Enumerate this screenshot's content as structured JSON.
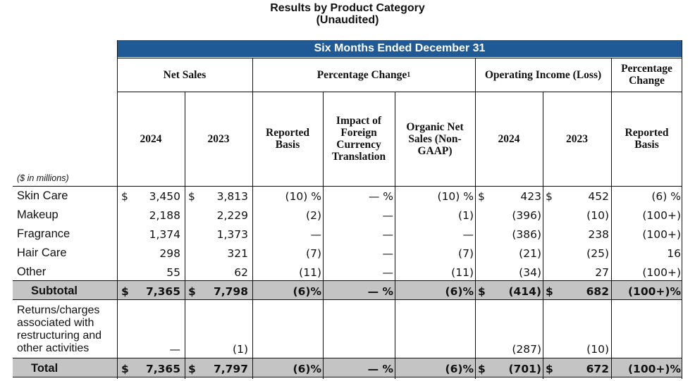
{
  "title": "Results by Product Category",
  "subtitle": "(Unaudited)",
  "band": "Six Months Ended December 31",
  "groups": {
    "net_sales": "Net Sales",
    "pct_change": "Percentage Change",
    "pct_change_sup": "1",
    "op_income": "Operating Income (Loss)",
    "pct_change2": "Percentage Change"
  },
  "cols": {
    "ns_2024": "2024",
    "ns_2023": "2023",
    "reported": "Reported Basis",
    "impact": "Impact of Foreign Currency Translation",
    "organic": "Organic Net Sales (Non-GAAP)",
    "oi_2024": "2024",
    "oi_2023": "2023",
    "reported2": "Reported Basis"
  },
  "units": "($ in millions)",
  "rows": [
    {
      "label": "Skin Care",
      "c1": "$",
      "v1": "3,450",
      "c2": "$",
      "v2": "3,813",
      "rep": "(10) %",
      "imp": "— %",
      "org": "(10) %",
      "c3": "$",
      "v3": "423",
      "c4": "$",
      "v4": "452",
      "pc": "(6) %"
    },
    {
      "label": "Makeup",
      "c1": "",
      "v1": "2,188",
      "c2": "",
      "v2": "2,229",
      "rep": "(2)",
      "imp": "—",
      "org": "(1)",
      "c3": "",
      "v3": "(396)",
      "c4": "",
      "v4": "(10)",
      "pc": "(100+)"
    },
    {
      "label": "Fragrance",
      "c1": "",
      "v1": "1,374",
      "c2": "",
      "v2": "1,373",
      "rep": "—",
      "imp": "—",
      "org": "—",
      "c3": "",
      "v3": "(386)",
      "c4": "",
      "v4": "238",
      "pc": "(100+)"
    },
    {
      "label": "Hair Care",
      "c1": "",
      "v1": "298",
      "c2": "",
      "v2": "321",
      "rep": "(7)",
      "imp": "—",
      "org": "(7)",
      "c3": "",
      "v3": "(21)",
      "c4": "",
      "v4": "(25)",
      "pc": "16"
    },
    {
      "label": "Other",
      "c1": "",
      "v1": "55",
      "c2": "",
      "v2": "62",
      "rep": "(11)",
      "imp": "—",
      "org": "(11)",
      "c3": "",
      "v3": "(34)",
      "c4": "",
      "v4": "27",
      "pc": "(100+)"
    },
    {
      "label": "Subtotal",
      "c1": "$",
      "v1": "7,365",
      "c2": "$",
      "v2": "7,798",
      "rep": "(6)%",
      "imp": "— %",
      "org": "(6)%",
      "c3": "$",
      "v3": "(414)",
      "c4": "$",
      "v4": "682",
      "pc": "(100+)%"
    },
    {
      "label": "Returns/charges associated with restructuring and other activities",
      "c1": "",
      "v1": "—",
      "c2": "",
      "v2": "(1)",
      "rep": "",
      "imp": "",
      "org": "",
      "c3": "",
      "v3": "(287)",
      "c4": "",
      "v4": "(10)",
      "pc": ""
    },
    {
      "label": "Total",
      "c1": "$",
      "v1": "7,365",
      "c2": "$",
      "v2": "7,797",
      "rep": "(6)%",
      "imp": "— %",
      "org": "(6)%",
      "c3": "$",
      "v3": "(701)",
      "c4": "$",
      "v4": "672",
      "pc": "(100+)%"
    }
  ]
}
